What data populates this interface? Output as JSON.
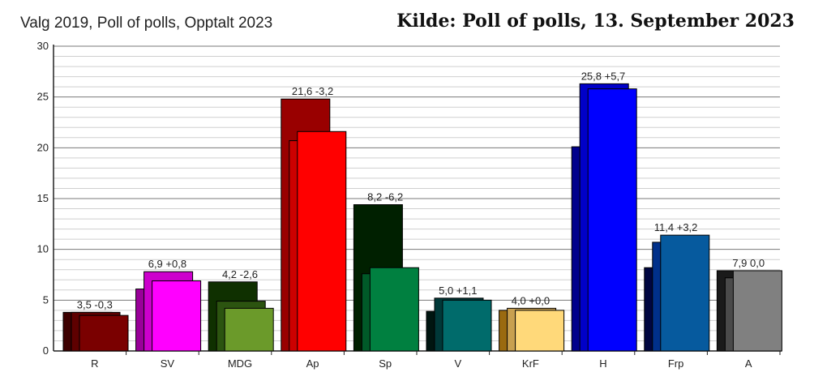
{
  "header": {
    "title_left": "Valg 2019, Poll of polls, Opptalt 2023",
    "title_right": "Kilde: Poll of polls, 13. September 2023"
  },
  "chart_data": {
    "type": "bar",
    "title": "Valg 2019, Poll of polls, Opptalt 2023",
    "source": "Kilde: Poll of polls, 13. September 2023",
    "ylim": [
      0,
      30
    ],
    "yticks": [
      0,
      5,
      10,
      15,
      20,
      25,
      30
    ],
    "grid": true,
    "categories": [
      "R",
      "SV",
      "MDG",
      "Ap",
      "Sp",
      "V",
      "KrF",
      "H",
      "Frp",
      "A"
    ],
    "series": [
      {
        "name": "",
        "values": [
          3.8,
          6.1,
          6.8,
          24.8,
          14.4,
          3.9,
          4.0,
          20.1,
          8.2,
          7.9
        ]
      },
      {
        "name": "",
        "values": [
          3.8,
          7.8,
          4.9,
          20.7,
          7.6,
          5.2,
          4.2,
          26.3,
          10.7,
          7.2
        ]
      },
      {
        "name": "",
        "values": [
          3.5,
          6.9,
          4.2,
          21.6,
          8.2,
          5.0,
          4.0,
          25.8,
          11.4,
          7.9
        ]
      }
    ],
    "labels": [
      "3,5 -0,3",
      "6,9 +0,8",
      "4,2 -2,6",
      "21,6 -3,2",
      "8,2 -6,2",
      "5,0 +1,1",
      "4,0 +0,0",
      "25,8 +5,7",
      "11,4 +3,2",
      "7,9 0,0"
    ],
    "colors": [
      [
        "#3d0000",
        "#5e0000",
        "#7a0000"
      ],
      [
        "#990099",
        "#cc00cc",
        "#ff00ff"
      ],
      [
        "#0f3000",
        "#2c5410",
        "#6b9a2a"
      ],
      [
        "#990000",
        "#cc0000",
        "#ff0000"
      ],
      [
        "#002000",
        "#005a28",
        "#008040"
      ],
      [
        "#001510",
        "#003838",
        "#006b6b"
      ],
      [
        "#9a6a10",
        "#c8a050",
        "#ffd97a"
      ],
      [
        "#00008c",
        "#0000c8",
        "#0000ff"
      ],
      [
        "#000640",
        "#00308a",
        "#065a9e"
      ],
      [
        "#1a1a1a",
        "#4a4a4a",
        "#808080"
      ]
    ]
  }
}
